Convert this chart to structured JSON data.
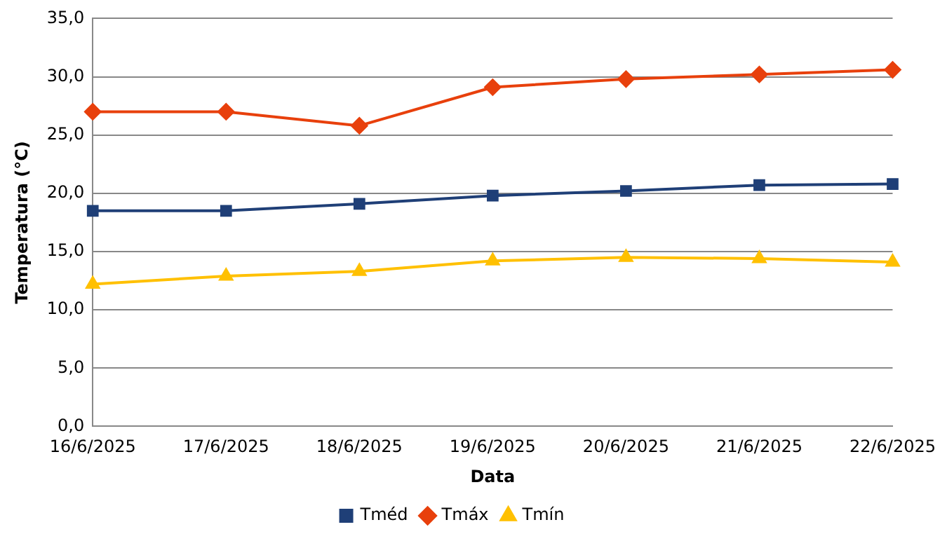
{
  "chart_data": {
    "type": "line",
    "xlabel": "Data",
    "ylabel": "Temperatura (°C)",
    "categories": [
      "16/6/2025",
      "17/6/2025",
      "18/6/2025",
      "19/6/2025",
      "20/6/2025",
      "21/6/2025",
      "22/6/2025"
    ],
    "series": [
      {
        "name": "Tméd",
        "color": "#1f3f77",
        "marker": "square",
        "values": [
          18.5,
          18.5,
          19.1,
          19.8,
          20.2,
          20.7,
          20.8
        ]
      },
      {
        "name": "Tmáx",
        "color": "#e8400c",
        "marker": "diamond",
        "values": [
          27.0,
          27.0,
          25.8,
          29.1,
          29.8,
          30.2,
          30.6
        ]
      },
      {
        "name": "Tmín",
        "color": "#ffc000",
        "marker": "triangle",
        "values": [
          12.2,
          12.9,
          13.3,
          14.2,
          14.5,
          14.4,
          14.1
        ]
      }
    ],
    "ylim": [
      0,
      35
    ],
    "yticks": [
      {
        "value": 0,
        "label": "0,0"
      },
      {
        "value": 5,
        "label": "5,0"
      },
      {
        "value": 10,
        "label": "10,0"
      },
      {
        "value": 15,
        "label": "15,0"
      },
      {
        "value": 20,
        "label": "20,0"
      },
      {
        "value": 25,
        "label": "25,0"
      },
      {
        "value": 30,
        "label": "30,0"
      },
      {
        "value": 35,
        "label": "35,0"
      }
    ],
    "grid": "y",
    "legend": "bottom",
    "line_style": "solid"
  }
}
